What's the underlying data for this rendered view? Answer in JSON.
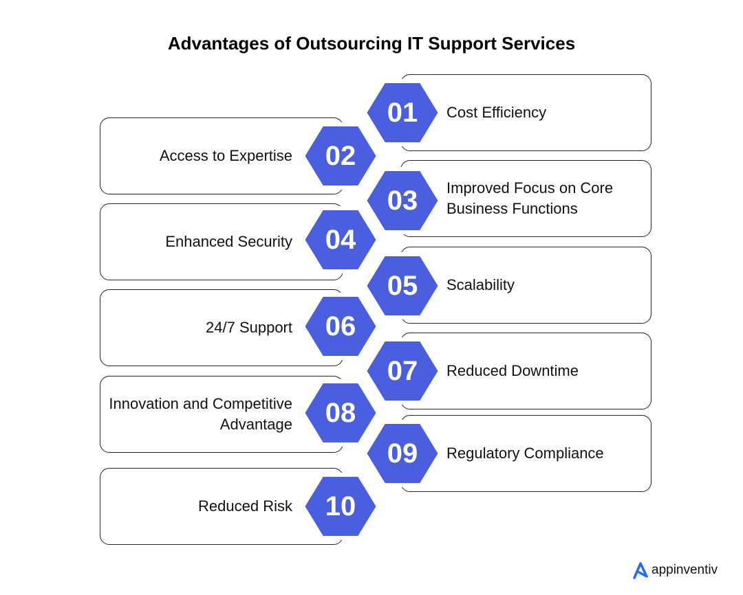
{
  "title": "Advantages of Outsourcing  IT Support Services",
  "accent_color": "#4A5FE0",
  "items": [
    {
      "number": "01",
      "label": "Cost Efficiency",
      "side": "right"
    },
    {
      "number": "02",
      "label": "Access to Expertise",
      "side": "left"
    },
    {
      "number": "03",
      "label": "Improved Focus on Core Business Functions",
      "side": "right"
    },
    {
      "number": "04",
      "label": "Enhanced Security",
      "side": "left"
    },
    {
      "number": "05",
      "label": "Scalability",
      "side": "right"
    },
    {
      "number": "06",
      "label": "24/7 Support",
      "side": "left"
    },
    {
      "number": "07",
      "label": "Reduced Downtime",
      "side": "right"
    },
    {
      "number": "08",
      "label": "Innovation and Competitive Advantage",
      "side": "left"
    },
    {
      "number": "09",
      "label": "Regulatory Compliance",
      "side": "right"
    },
    {
      "number": "10",
      "label": "Reduced Risk",
      "side": "left"
    }
  ],
  "logo": {
    "text": "appinventiv",
    "icon": "appinventiv-a-logo-icon",
    "color": "#1F6BFF"
  }
}
